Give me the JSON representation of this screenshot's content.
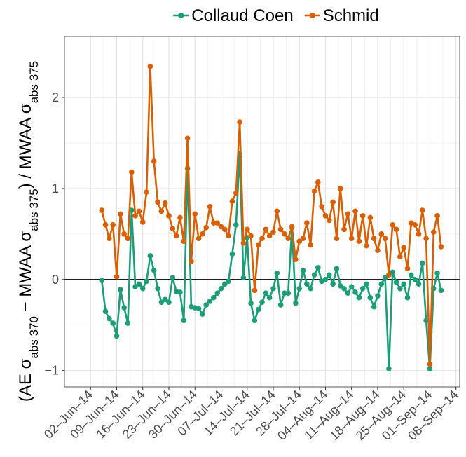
{
  "chart_data": {
    "type": "line",
    "y_label": [
      "(AE σ",
      "abs 370",
      " − MWAA σ",
      "abs 375",
      ") / MWAA σ",
      "abs 375"
    ],
    "x": [
      "2014-06-05",
      "2014-06-06",
      "2014-06-07",
      "2014-06-08",
      "2014-06-09",
      "2014-06-10",
      "2014-06-11",
      "2014-06-12",
      "2014-06-13",
      "2014-06-14",
      "2014-06-15",
      "2014-06-16",
      "2014-06-17",
      "2014-06-18",
      "2014-06-19",
      "2014-06-20",
      "2014-06-21",
      "2014-06-22",
      "2014-06-23",
      "2014-06-24",
      "2014-06-25",
      "2014-06-26",
      "2014-06-27",
      "2014-06-28",
      "2014-06-29",
      "2014-06-30",
      "2014-07-01",
      "2014-07-02",
      "2014-07-03",
      "2014-07-04",
      "2014-07-05",
      "2014-07-06",
      "2014-07-07",
      "2014-07-08",
      "2014-07-09",
      "2014-07-10",
      "2014-07-11",
      "2014-07-12",
      "2014-07-13",
      "2014-07-14",
      "2014-07-15",
      "2014-07-16",
      "2014-07-17",
      "2014-07-18",
      "2014-07-19",
      "2014-07-20",
      "2014-07-21",
      "2014-07-22",
      "2014-07-23",
      "2014-07-24",
      "2014-07-25",
      "2014-07-26",
      "2014-07-27",
      "2014-07-28",
      "2014-07-29",
      "2014-07-30",
      "2014-07-31",
      "2014-08-01",
      "2014-08-02",
      "2014-08-03",
      "2014-08-04",
      "2014-08-05",
      "2014-08-06",
      "2014-08-07",
      "2014-08-08",
      "2014-08-09",
      "2014-08-10",
      "2014-08-11",
      "2014-08-12",
      "2014-08-13",
      "2014-08-14",
      "2014-08-15",
      "2014-08-16",
      "2014-08-17",
      "2014-08-18",
      "2014-08-19",
      "2014-08-20",
      "2014-08-21",
      "2014-08-22",
      "2014-08-23",
      "2014-08-24",
      "2014-08-25",
      "2014-08-26",
      "2014-08-27",
      "2014-08-28",
      "2014-08-29",
      "2014-08-30",
      "2014-08-31",
      "2014-09-01",
      "2014-09-02",
      "2014-09-03",
      "2014-09-04"
    ],
    "series": [
      {
        "name": "Collaud Coen",
        "color": "#1b9e77",
        "values": [
          -0.01,
          -0.35,
          -0.43,
          -0.48,
          -0.62,
          -0.11,
          -0.31,
          -0.48,
          0.76,
          -0.08,
          -0.05,
          -0.1,
          -0.02,
          0.26,
          0.1,
          -0.1,
          -0.25,
          -0.22,
          -0.25,
          0.02,
          -0.13,
          -0.14,
          -0.45,
          1.22,
          -0.3,
          -0.31,
          -0.32,
          -0.38,
          -0.28,
          -0.24,
          -0.2,
          -0.15,
          -0.1,
          -0.05,
          -0.02,
          0.28,
          0.6,
          1.38,
          0.02,
          0.46,
          -0.26,
          -0.45,
          -0.33,
          -0.25,
          -0.15,
          -0.2,
          -0.1,
          0.07,
          -0.28,
          -0.15,
          -0.15,
          0.57,
          -0.26,
          -0.1,
          0.1,
          -0.05,
          -0.1,
          0.05,
          0.13,
          -0.02,
          0,
          0.05,
          -0.05,
          0.12,
          -0.07,
          -0.1,
          -0.15,
          -0.08,
          -0.14,
          -0.2,
          -0.1,
          -0.05,
          -0.2,
          -0.3,
          -0.18,
          -0.05,
          0.02,
          -0.98,
          0.08,
          -0.03,
          -0.1,
          -0.05,
          -0.2,
          0.05,
          0,
          -0.05,
          0.18,
          -0.45,
          -0.98,
          -0.1,
          0.07,
          -0.12
        ]
      },
      {
        "name": "Schmid",
        "color": "#d95f02",
        "values": [
          0.76,
          0.6,
          0.45,
          0.6,
          0.03,
          0.72,
          0.5,
          0.45,
          1.18,
          0.7,
          0.75,
          0.63,
          0.96,
          2.34,
          1.3,
          0.85,
          0.75,
          0.84,
          0.7,
          0.56,
          0.48,
          0.68,
          0.42,
          1.55,
          0.2,
          0.72,
          0.45,
          0.5,
          0.57,
          0.8,
          0.62,
          0.62,
          0.58,
          0.55,
          0.48,
          0.86,
          0.95,
          1.73,
          0.4,
          0.55,
          0.48,
          -0.12,
          0.38,
          0.45,
          0.55,
          0.48,
          0.52,
          0.75,
          0.55,
          0.5,
          0.45,
          0.58,
          0.22,
          0.42,
          0.45,
          0.62,
          0.38,
          0.97,
          1.07,
          0.8,
          0.7,
          0.65,
          0.85,
          0.45,
          1.0,
          0.55,
          0.72,
          0.45,
          0.75,
          0.42,
          0.7,
          0.37,
          0.68,
          0.45,
          0.32,
          0.5,
          0.45,
          0.05,
          0.6,
          0.55,
          0.25,
          0.35,
          0.12,
          0.62,
          0.6,
          0.5,
          0.76,
          0.45,
          -0.93,
          0.52,
          0.7,
          0.36
        ]
      }
    ],
    "xlim": [
      "2014-05-26",
      "2014-09-09"
    ],
    "xticks": [
      {
        "value": "2014-06-02",
        "label": "02–Jun–14"
      },
      {
        "value": "2014-06-09",
        "label": "09–Jun–14"
      },
      {
        "value": "2014-06-16",
        "label": "16–Jun–14"
      },
      {
        "value": "2014-06-23",
        "label": "23–Jun–14"
      },
      {
        "value": "2014-06-30",
        "label": "30–Jun–14"
      },
      {
        "value": "2014-07-07",
        "label": "07–Jul–14"
      },
      {
        "value": "2014-07-14",
        "label": "14–Jul–14"
      },
      {
        "value": "2014-07-21",
        "label": "21–Jul–14"
      },
      {
        "value": "2014-07-28",
        "label": "28–Jul–14"
      },
      {
        "value": "2014-08-04",
        "label": "04–Aug–14"
      },
      {
        "value": "2014-08-11",
        "label": "11–Aug–14"
      },
      {
        "value": "2014-08-18",
        "label": "18–Aug–14"
      },
      {
        "value": "2014-08-25",
        "label": "25–Aug–14"
      },
      {
        "value": "2014-09-01",
        "label": "01–Sep–14"
      },
      {
        "value": "2014-09-08",
        "label": "08–Sep–14"
      }
    ],
    "ylim": [
      -1.18,
      2.67
    ],
    "yticks": [
      {
        "value": -1,
        "label": "−1"
      },
      0,
      1,
      2
    ],
    "hline": 0,
    "grid": true,
    "legend": "top"
  }
}
